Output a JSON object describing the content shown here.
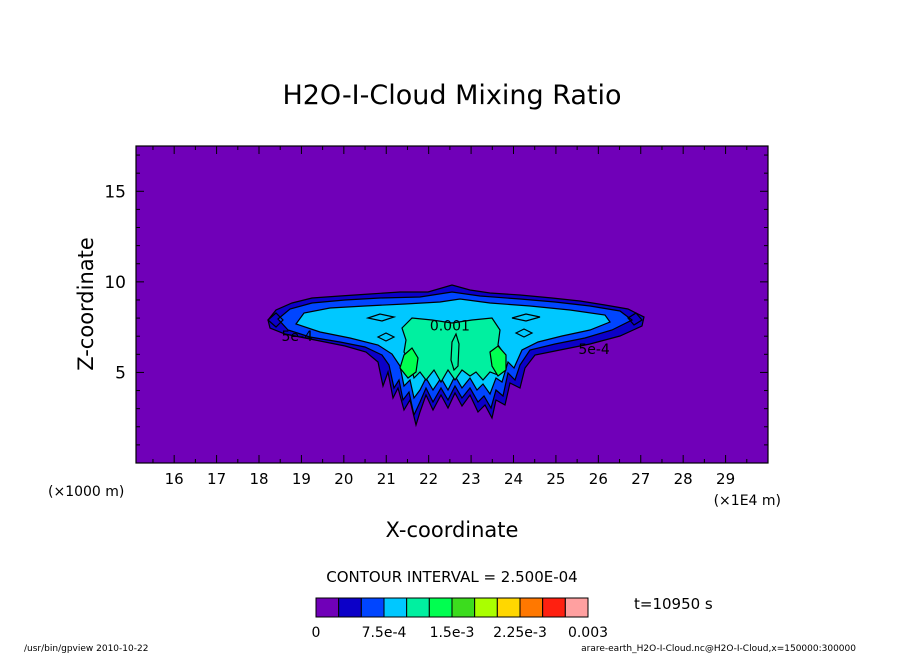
{
  "chart_data": {
    "type": "heatmap",
    "title": "H2O-I-Cloud Mixing Ratio",
    "xlabel": "X-coordinate",
    "ylabel": "Z-coordinate",
    "x_scale_note": "(×1E4 m)",
    "y_scale_note": "(×1000 m)",
    "xlim": [
      15.1,
      30.0
    ],
    "ylim": [
      0.0,
      17.5
    ],
    "x_ticks": [
      "16",
      "17",
      "18",
      "19",
      "20",
      "21",
      "22",
      "23",
      "24",
      "25",
      "26",
      "27",
      "28",
      "29"
    ],
    "y_ticks": [
      "5",
      "10",
      "15"
    ],
    "contour_interval_text": "CONTOUR INTERVAL = 2.500E-04",
    "time_text": "t=10950 s",
    "contour_labels": [
      {
        "text": "0.001",
        "x": 22.5,
        "z": 7.6
      },
      {
        "text": "5e-4",
        "x": 18.9,
        "z": 7.0
      },
      {
        "text": "5e-4",
        "x": 25.9,
        "z": 6.3
      }
    ],
    "colorbar": {
      "colors": [
        "#7000b8",
        "#0c00c8",
        "#0045ff",
        "#00c8ff",
        "#00f0a0",
        "#00ff50",
        "#3cdc1e",
        "#aaff00",
        "#ffd700",
        "#ff7800",
        "#ff2010",
        "#ffa0a0"
      ],
      "tick_labels": [
        "0",
        "7.5e-4",
        "1.5e-3",
        "2.25e-3",
        "0.003"
      ]
    },
    "footer_left": "/usr/bin/gpview  2010-10-22",
    "footer_right": "arare-earth_H2O-I-Cloud.nc@H2O-I-Cloud,x=150000:300000"
  }
}
